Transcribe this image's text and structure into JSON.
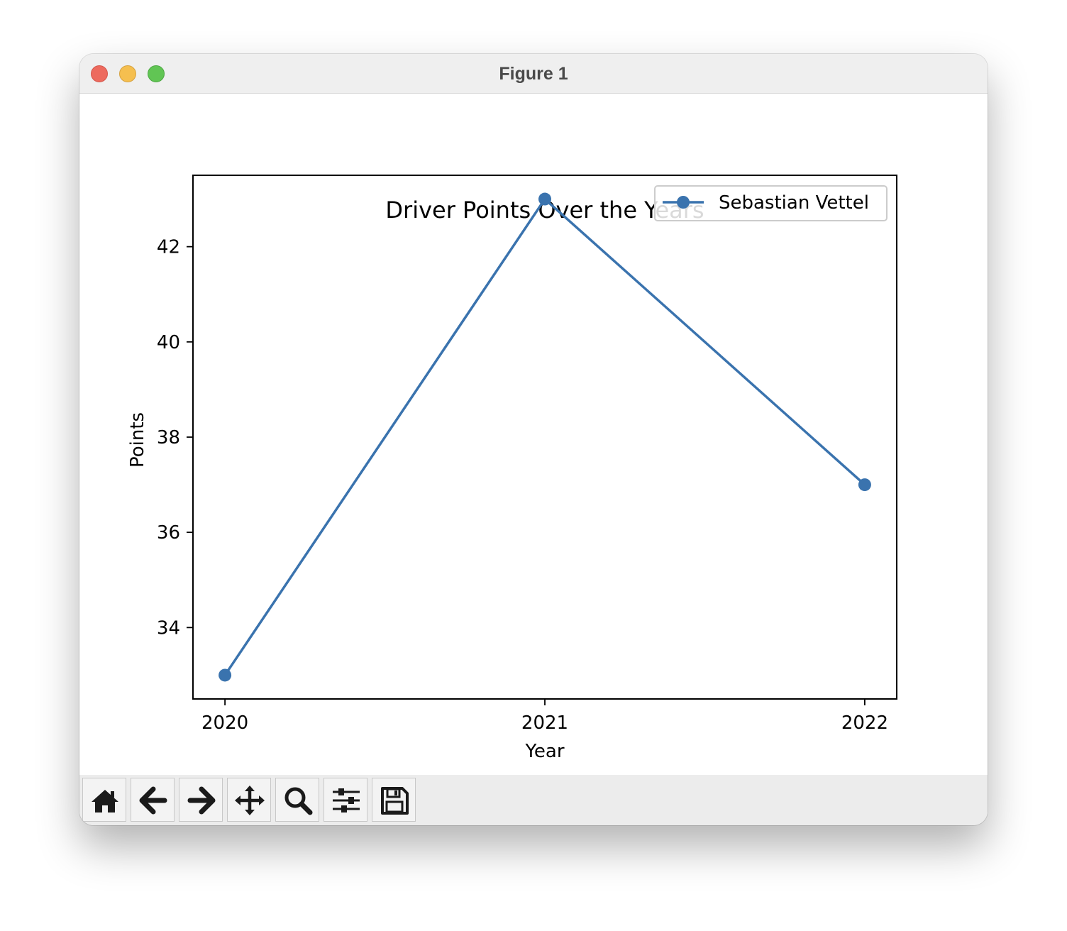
{
  "window": {
    "title": "Figure 1"
  },
  "toolbar": {
    "buttons": [
      {
        "name": "home",
        "icon": "home-icon"
      },
      {
        "name": "back",
        "icon": "arrow-left-icon"
      },
      {
        "name": "forward",
        "icon": "arrow-right-icon"
      },
      {
        "name": "pan",
        "icon": "move-icon"
      },
      {
        "name": "zoom",
        "icon": "magnifier-icon"
      },
      {
        "name": "configure-subplots",
        "icon": "sliders-icon"
      },
      {
        "name": "save",
        "icon": "floppy-disk-icon"
      }
    ]
  },
  "chart_data": {
    "type": "line",
    "title": "Driver Points Over the Years",
    "xlabel": "Year",
    "ylabel": "Points",
    "x": [
      2020,
      2021,
      2022
    ],
    "xticks": [
      "2020",
      "2021",
      "2022"
    ],
    "yticks": [
      34,
      36,
      38,
      40,
      42
    ],
    "ylim": [
      32.5,
      43.5
    ],
    "xlim": [
      2019.9,
      2022.1
    ],
    "grid": false,
    "legend": "top-right",
    "series": [
      {
        "name": "Sebastian Vettel",
        "values": [
          33,
          43,
          37
        ],
        "color": "#3a73ae",
        "marker": "circle"
      }
    ]
  }
}
